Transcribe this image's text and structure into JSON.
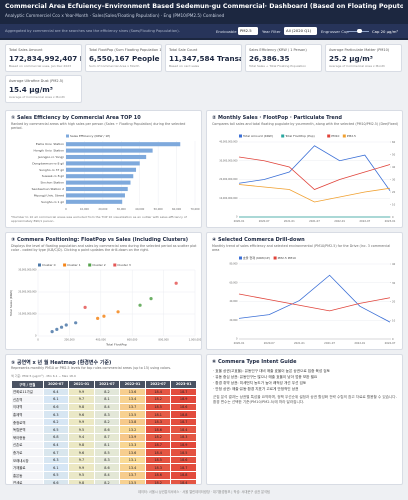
{
  "header": {
    "title": "Commercial Area Ecfuiency–Environment Based Sedemun-gu Commercial· Dashboard (Based on Floating Poputon 1)",
    "subtitle": "Analyptic Commerciel Cco x Year-Month · Sales(Sales/Floating Papulation) · Eng (PM10/PM2.5) Combined",
    "description": "Aggregated by commercial are the searches sea the efficiency sines (Soes/Flouting Popuulation).",
    "filters": [
      {
        "label": "Envicoable",
        "value": "PM2.5"
      },
      {
        "label": "Year Filter",
        "value": "All (2020 Q1)"
      },
      {
        "label": "Engrusser Cup",
        "value": "Cap 20 µg/m³"
      }
    ]
  },
  "kpis": [
    {
      "label": "Total Sales Amount",
      "value": "172,834,992,407 KRW",
      "note": "Based on commercial uses, Jan Dec 2023"
    },
    {
      "label": "Total FlootPop (Sum Floating Population 1)",
      "value": "6,550,167 People",
      "note": "Sum of Commercial Area x Month"
    },
    {
      "label": "Total Sale Count",
      "value": "11,347,584 Transactions",
      "note": "Based on card sales"
    },
    {
      "label": "Sales Efficiency (KRW / 1 Person)",
      "value": "26,386.35",
      "note": "Total Sales ÷ Total Floating Population"
    },
    {
      "label": "Average Particulate Matter (PM10)",
      "value": "25.2 µg/m³",
      "note": "Average of Commercial Area x Month"
    },
    {
      "label": "Average Ultrafine Dust (PM2.5)",
      "value": "15.4 µg/m³",
      "note": "Average of Commercial Area x Month"
    }
  ],
  "chart_data": [
    {
      "type": "hbar",
      "title": "① Sales Efficiency by Commercial Area TOP 10",
      "subtitle": "Ranked by commercial areas with high sales per person (Sales ÷ Floating Population) during the selected period.",
      "note": "*Number to 10 all commercial areas was excluded from the TOP 10 visualization as an outlier with sales efficiency of approximately 89K/1 person.",
      "categories": [
        "Ewha Univ. Station",
        "Hongik Univ. Station",
        "Jeongpo-ro Yongji",
        "Dongdaemun-ro 8 gil",
        "Sungho-ro 37 gil",
        "Susaek-ro 8 gil",
        "Sinchon Station",
        "Seodaemun Station 2",
        "Myungji Univ. Street",
        "Sungho-ro 1 gil"
      ],
      "series": [
        {
          "name": "Sales Efficiency (KRW / 1P)",
          "color": "#7ea9dc",
          "values": [
            62000,
            47000,
            43500,
            40000,
            38000,
            36500,
            35000,
            33500,
            32000,
            30500
          ]
        }
      ],
      "xlim": [
        0,
        70000
      ],
      "xticks": [
        0,
        {
          "value": 10000,
          "label": "10,000"
        },
        {
          "value": 20000,
          "label": "20,000"
        },
        {
          "value": 30000,
          "label": "30,000"
        },
        {
          "value": 40000,
          "label": "40,000"
        },
        {
          "value": 50000,
          "label": "50,000"
        },
        {
          "value": 60000,
          "label": "60,000"
        },
        {
          "value": 70000,
          "label": "70,000"
        }
      ],
      "grid": true
    },
    {
      "type": "line",
      "title": "② Monthly Sales · FlootPop · Particulate Trend",
      "subtitle": "Compares toll sales and total floating pugulate by yourmenth, along with the selected (PM10/PM2.5) (Dee/Fixed)",
      "categories": [
        "2020-01",
        "2020-07",
        "2021-01",
        "2021-07",
        "2022-01",
        "2022-07",
        "2023-01"
      ],
      "series": [
        {
          "name": "Total Amount (KRW)",
          "color": "#3b6fd6",
          "values": [
            18000000000,
            20000000000,
            24000000000,
            38000000000,
            30000000000,
            33000000000,
            14000000000
          ]
        },
        {
          "name": "Total FlootPop (Pop)",
          "color": "#2aa7a0",
          "values": [
            900000,
            950000,
            1000000,
            1200000,
            1100000,
            1150000,
            800000
          ]
        },
        {
          "name": "PM10",
          "color": "#e0433a",
          "axis": "y2",
          "values": [
            48,
            45,
            40,
            22,
            30,
            36,
            42
          ]
        },
        {
          "name": "PM2.5",
          "color": "#f0a030",
          "axis": "y2",
          "values": [
            26,
            24,
            22,
            12,
            16,
            20,
            23
          ]
        }
      ],
      "ylim": [
        0,
        40000000000
      ],
      "yticks": [
        0,
        {
          "value": 10000000000,
          "label": "10,000,000,000"
        },
        {
          "value": 20000000000,
          "label": "20,000,000,000"
        },
        {
          "value": 30000000000,
          "label": "30,000,000,000"
        },
        {
          "value": 40000000000,
          "label": "40,000,000,000"
        }
      ],
      "y2lim": [
        0,
        60
      ],
      "y2ticks": [
        0,
        10,
        20,
        30,
        40,
        50,
        60
      ],
      "grid": true
    },
    {
      "type": "scatter",
      "title": "③ Commera Positioning: FloatPop vs Sales (Including Clusters)",
      "subtitle": "Displays the level of floating population and sales by commercial area during the selected period as scatter plot color - coded by type (K-B/C/D). Clicking a point updates the drill-down on the right.",
      "x_label": "Total FlootPop",
      "y_label": "Total Sales (KRW)",
      "series": [
        {
          "name": "Cluster 0",
          "color": "#4c78a8",
          "x": [
            120000,
            180000,
            90000,
            240000,
            150000
          ],
          "values": [
            3000000000,
            5000000000,
            2000000000,
            6000000000,
            4000000000
          ]
        },
        {
          "name": "Cluster 1",
          "color": "#f58518",
          "x": [
            420000,
            510000,
            380000
          ],
          "values": [
            9000000000,
            11000000000,
            8000000000
          ]
        },
        {
          "name": "Cluster 2",
          "color": "#54a24b",
          "x": [
            650000,
            720000
          ],
          "values": [
            14000000000,
            17000000000
          ]
        },
        {
          "name": "Cluster 3",
          "color": "#e45756",
          "x": [
            880000,
            300000
          ],
          "values": [
            24000000000,
            13000000000
          ]
        }
      ],
      "xlim": [
        0,
        1000000
      ],
      "xticks": [
        0,
        {
          "value": 200000,
          "label": "200,000"
        },
        {
          "value": 400000,
          "label": "400,000"
        },
        {
          "value": 600000,
          "label": "600,000"
        },
        {
          "value": 800000,
          "label": "800,000"
        },
        {
          "value": 1000000,
          "label": "1,000,000"
        }
      ],
      "ylim": [
        0,
        30000000000
      ],
      "yticks": [
        0,
        {
          "value": 10000000000,
          "label": "10,000,000,000"
        },
        {
          "value": 20000000000,
          "label": "20,000,000,000"
        },
        {
          "value": 30000000000,
          "label": "30,000,000,000"
        }
      ],
      "grid": true
    },
    {
      "type": "line",
      "title": "④ Selected Commerca Drill-down",
      "subtitle": "Monthly trend of sales efficiency and selected environmental (PM10/PM2.5) for the Drive (Inc. 3 commercial area",
      "categories": [
        "2020-01",
        "2020-07",
        "2021-01",
        "2021-07",
        "2022-01",
        "2022-07"
      ],
      "series": [
        {
          "name": "효율 현재 (KRW/1P)",
          "color": "#3b6fd6",
          "values": [
            22000,
            26000,
            41000,
            68000,
            35000,
            18000
          ]
        },
        {
          "name": "PM2.5 PM10",
          "color": "#e0433a",
          "axis": "y2",
          "values": [
            24,
            21,
            18,
            15,
            19,
            22
          ]
        }
      ],
      "ylim": [
        0,
        80000
      ],
      "yticks": [
        0,
        {
          "value": 20000,
          "label": "20,000"
        },
        {
          "value": 40000,
          "label": "40,000"
        },
        {
          "value": 60000,
          "label": "60,000"
        },
        {
          "value": 80000,
          "label": "80,000"
        }
      ],
      "y2lim": [
        0,
        40
      ],
      "y2ticks": [
        0,
        10,
        20,
        30,
        40
      ],
      "grid": true
    }
  ],
  "heatmap": {
    "title": "⑤ 공연역 x 년 월 Heatmap (환경변수 기준)",
    "subtitle": "Represents monthly PM10 or PM2.5 levels for top rules commercial areas (up to 15) using colors.",
    "caption": "색 기준: PM2.5 (µg/m³) · Min 6.1 ~ Max 18.9",
    "columns": [
      "구역 / 연월",
      "2020-07",
      "2021-01",
      "2021-07",
      "2022-01",
      "2022-07",
      "2023-01"
    ],
    "color_scale": [
      "#d6e6f5",
      "#fbeaa0",
      "#e2483b"
    ],
    "rows": [
      {
        "name": "연희로11가길",
        "values": [
          6.4,
          9.9,
          8.2,
          13.6,
          18.4,
          18.7
        ]
      },
      {
        "name": "신촌역",
        "values": [
          6.1,
          9.7,
          8.1,
          13.4,
          18.2,
          18.9
        ]
      },
      {
        "name": "이대역",
        "values": [
          6.6,
          9.8,
          8.4,
          13.7,
          18.5,
          18.6
        ]
      },
      {
        "name": "홍제역",
        "values": [
          6.3,
          9.6,
          8.3,
          13.5,
          18.1,
          18.8
        ]
      },
      {
        "name": "충정로역",
        "values": [
          6.2,
          9.9,
          8.2,
          13.8,
          18.3,
          18.7
        ]
      },
      {
        "name": "독립문역",
        "values": [
          6.5,
          9.5,
          8.6,
          13.2,
          18.6,
          18.4
        ]
      },
      {
        "name": "북아현동",
        "values": [
          6.8,
          9.4,
          8.7,
          13.9,
          18.2,
          18.3
        ]
      },
      {
        "name": "신촌로",
        "values": [
          6.4,
          9.8,
          8.1,
          13.3,
          18.7,
          18.9
        ]
      },
      {
        "name": "증가로",
        "values": [
          6.7,
          9.6,
          8.5,
          13.6,
          18.4,
          18.5
        ]
      },
      {
        "name": "모래내시장",
        "values": [
          6.3,
          9.7,
          8.3,
          13.1,
          18.5,
          18.6
        ]
      },
      {
        "name": "가재울로",
        "values": [
          6.1,
          9.9,
          8.6,
          13.4,
          18.3,
          18.7
        ]
      },
      {
        "name": "홍은동",
        "values": [
          6.5,
          9.5,
          8.4,
          13.7,
          18.6,
          18.8
        ]
      },
      {
        "name": "연세로",
        "values": [
          6.6,
          9.8,
          8.2,
          13.5,
          18.2,
          18.4
        ]
      }
    ]
  },
  "guide": {
    "title": "⑥ Commera Type Intent Guide",
    "lines": [
      "· 효율 상권(고효율): 유동인구 대비 매출 효율이 높은 상권으로 집중 육성 검토",
      "· 유동 중심 상권: 유동인구는 많으나 매출 효율이 낮아 업종 보완 필요",
      "· 환경 취약 상권: 미세먼지 농도가 높아 쾌적성 개선 우선 검토",
      "· 안정 상권: 매출·유동·환경 지표가 고르게 안정적인 상권"
    ],
    "paragraph": "군집 분석 결과는 상권별 특성을 요약하며, 정책 우선순위 설정과 상권 활성화 전략 수립의 참고 자료로 활용할 수 있습니다. 환경 변수는 선택한 기준(PM10/PM2.5)에 따라 달라집니다."
  },
  "footer": "데이터: 서울시 상권분석서비스 · 서울 열린데이터광장 · 대기환경정보 | 작성: 서대문구 상권 분석팀"
}
